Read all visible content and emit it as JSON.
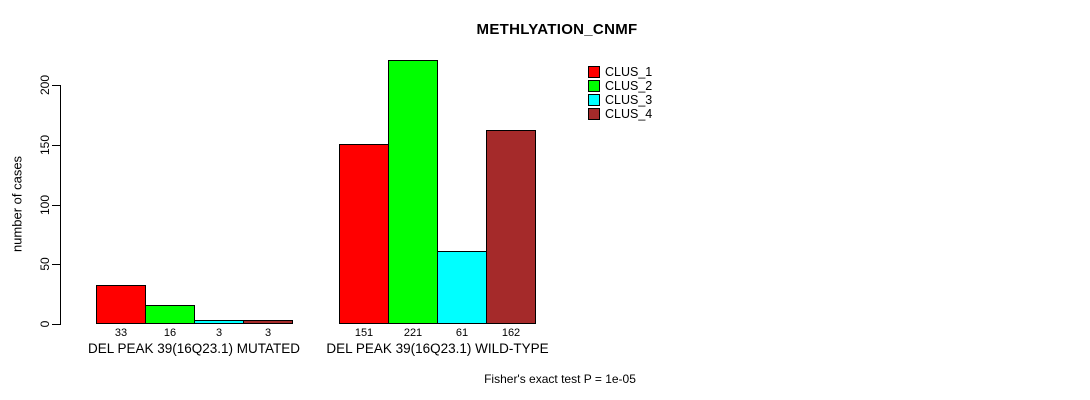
{
  "title": "METHLYATION_CNMF",
  "footer": "Fisher's exact test P = 1e-05",
  "chart_data": {
    "type": "bar",
    "title": "METHLYATION_CNMF",
    "xlabel": "",
    "ylabel": "number of cases",
    "yticks": [
      0,
      50,
      100,
      150,
      200
    ],
    "ylim": [
      0,
      225
    ],
    "grid": false,
    "legend_position": "top-right",
    "categories": [
      "DEL PEAK 39(16Q23.1) MUTATED",
      "DEL PEAK 39(16Q23.1) WILD-TYPE"
    ],
    "series": [
      {
        "name": "CLUS_1",
        "color": "#FF0000",
        "values": [
          33,
          151
        ]
      },
      {
        "name": "CLUS_2",
        "color": "#00FF00",
        "values": [
          16,
          221
        ]
      },
      {
        "name": "CLUS_3",
        "color": "#00FFFF",
        "values": [
          3,
          61
        ]
      },
      {
        "name": "CLUS_4",
        "color": "#A52A2A",
        "values": [
          3,
          162
        ]
      }
    ],
    "annotation": "Fisher's exact test P = 1e-05"
  }
}
